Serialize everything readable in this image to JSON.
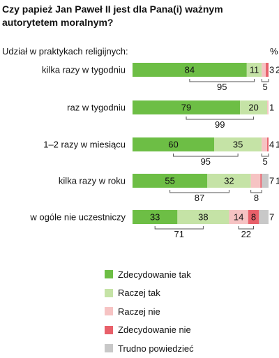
{
  "title": "Czy papież Jan Paweł II jest dla Pana(i) ważnym autorytetem moralnym?",
  "subtitle": "Udział w praktykach religijnych:",
  "unit": "%",
  "colors": {
    "zdecydowanie_tak": "#6dbe45",
    "raczej_tak": "#c5e3a6",
    "raczej_nie": "#f6c3c3",
    "zdecydowanie_nie": "#e8606a",
    "trudno": "#c8c8c8"
  },
  "chart_data": {
    "type": "bar",
    "orientation": "horizontal",
    "stacked": true,
    "categories": [
      "kilka razy w tygodniu",
      "raz w tygodniu",
      "1–2 razy w miesiącu",
      "kilka razy w roku",
      "w ogóle nie uczestniczy"
    ],
    "series": [
      {
        "name": "Zdecydowanie tak",
        "values": [
          84,
          79,
          60,
          55,
          33
        ]
      },
      {
        "name": "Raczej tak",
        "values": [
          11,
          20,
          35,
          32,
          38
        ]
      },
      {
        "name": "Raczej nie",
        "values": [
          3,
          1,
          4,
          7,
          14
        ]
      },
      {
        "name": "Zdecydowanie nie",
        "values": [
          2,
          0,
          1,
          1,
          8
        ]
      },
      {
        "name": "Trudno powiedzieć",
        "values": [
          0,
          0,
          0,
          5,
          7
        ]
      }
    ],
    "positive_totals": [
      95,
      99,
      95,
      87,
      71
    ],
    "negative_totals": [
      "5",
      "",
      "5",
      "8",
      "22"
    ],
    "xlim": [
      0,
      100
    ],
    "legend": "bottom"
  }
}
